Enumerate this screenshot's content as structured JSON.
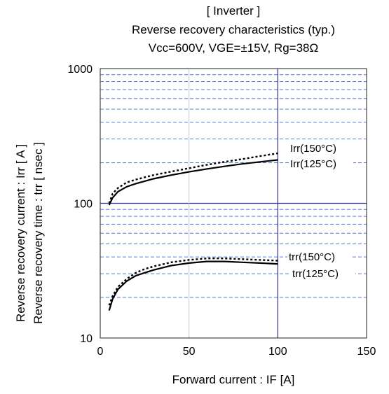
{
  "chart_data": {
    "type": "line",
    "title": "[ Inverter ]",
    "subtitle": "Reverse recovery characteristics  (typ.)",
    "conditions": "Vcc=600V,   VGE=±15V,   Rg=38Ω",
    "xlabel": "Forward current : IF [A]",
    "ylabel_line1": "Reverse recovery current  :  Irr  [ A ]",
    "ylabel_line2": "Reverse recovery time  :  trr  [ nsec ]",
    "xlim": [
      0,
      150
    ],
    "ylim": [
      10,
      1000
    ],
    "yscale": "log",
    "x_ticks": [
      "0",
      "50",
      "100",
      "150"
    ],
    "y_ticks": [
      "10",
      "100",
      "1000"
    ],
    "grid": true,
    "colors": {
      "grid_major": "#2b2b9a",
      "grid_minor": "#5577dd",
      "curve": "#000000"
    },
    "series": [
      {
        "name": "Irr(150°C)",
        "style": "dotted",
        "x": [
          5,
          7,
          10,
          15,
          20,
          30,
          40,
          50,
          60,
          70,
          80,
          90,
          100
        ],
        "y": [
          100,
          118,
          130,
          143,
          150,
          162,
          172,
          182,
          193,
          203,
          213,
          224,
          235
        ]
      },
      {
        "name": "Irr(125°C)",
        "style": "solid",
        "x": [
          5,
          7,
          10,
          15,
          20,
          30,
          40,
          50,
          60,
          70,
          80,
          90,
          100
        ],
        "y": [
          97,
          110,
          122,
          133,
          140,
          152,
          162,
          171,
          180,
          188,
          196,
          203,
          210
        ]
      },
      {
        "name": "trr(150°C)",
        "style": "dotted",
        "x": [
          5,
          7,
          10,
          15,
          20,
          25,
          30,
          40,
          50,
          60,
          70,
          80,
          90,
          100
        ],
        "y": [
          17.5,
          20.5,
          24,
          27.5,
          30.5,
          32.5,
          34,
          36.5,
          38,
          39,
          39,
          38.5,
          38,
          37.5
        ]
      },
      {
        "name": "trr(125°C)",
        "style": "solid",
        "x": [
          5,
          7,
          10,
          15,
          20,
          25,
          30,
          40,
          50,
          60,
          70,
          80,
          90,
          100
        ],
        "y": [
          16,
          19.5,
          23,
          26.5,
          29,
          30.5,
          32,
          34.5,
          36,
          37,
          37,
          36.5,
          36,
          35.5
        ]
      }
    ]
  }
}
